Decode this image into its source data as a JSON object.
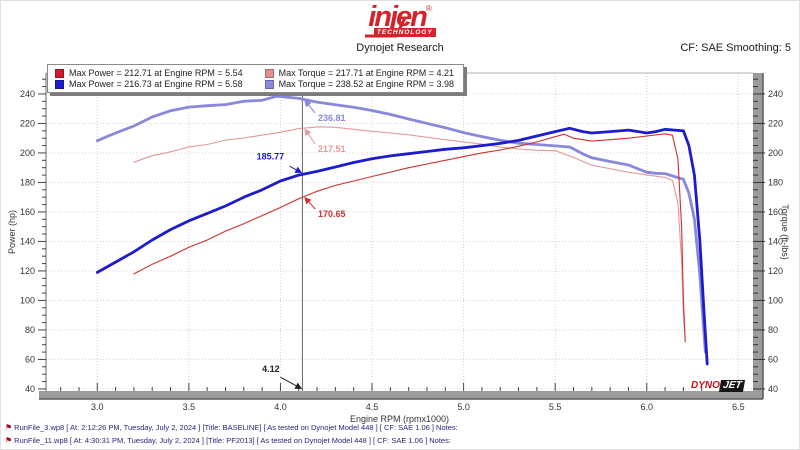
{
  "header": {
    "brand": {
      "name": "injen",
      "reg": "®",
      "sub": "TECHNOLOGY",
      "color": "#d6232a"
    },
    "title": "Dynojet Research",
    "cf_label": "CF: SAE Smoothing: 5"
  },
  "legend": {
    "items": [
      {
        "swatch": "#d01a2a",
        "label": "Max Power = 212.71 at Engine RPM = 5.54"
      },
      {
        "swatch": "#e38f8f",
        "label": "Max Torque = 217.71 at Engine RPM = 4.21"
      },
      {
        "swatch": "#1c1ccd",
        "label": "Max Power = 216.73 at Engine RPM = 5.58"
      },
      {
        "swatch": "#8a8ade",
        "label": "Max Torque = 238.52 at Engine RPM = 3.98"
      }
    ]
  },
  "chart_data": {
    "type": "line",
    "x_axis": {
      "label": "Engine RPM (rpmx1000)",
      "min": 2.72,
      "max": 6.58,
      "tick_values": [
        3.0,
        3.5,
        4.0,
        4.5,
        5.0,
        5.5,
        6.0,
        6.5
      ],
      "tick_labels": [
        "3.0",
        "3.5",
        "4.0",
        "4.5",
        "5.0",
        "5.5",
        "6.0",
        "6.5"
      ],
      "minor_step": 0.1
    },
    "y_axis_left": {
      "label": "Power (hp)",
      "min": 38.6,
      "max": 254.2,
      "tick_values": [
        40,
        60,
        80,
        100,
        120,
        140,
        160,
        180,
        200,
        220,
        240
      ],
      "minor_step": 5
    },
    "y_axis_right": {
      "label": "Torque (ft-lbs)",
      "min": 38.6,
      "max": 254.2,
      "tick_values": [
        40,
        60,
        80,
        100,
        120,
        140,
        160,
        180,
        200,
        220,
        240
      ],
      "minor_step": 5
    },
    "cursor": {
      "rpm": 4.12
    },
    "series": [
      {
        "name": "torque-baseline",
        "run": "BASELINE",
        "color": "#e39a9a",
        "width": 1.1,
        "points": [
          [
            3.2,
            193.7
          ],
          [
            3.3,
            198.1
          ],
          [
            3.4,
            200.8
          ],
          [
            3.5,
            204.1
          ],
          [
            3.6,
            205.7
          ],
          [
            3.7,
            208.7
          ],
          [
            3.8,
            210.1
          ],
          [
            3.9,
            212.1
          ],
          [
            4.0,
            214.0
          ],
          [
            4.1,
            216.5
          ],
          [
            4.21,
            217.7
          ],
          [
            4.3,
            217.4
          ],
          [
            4.4,
            216.0
          ],
          [
            4.5,
            214.7
          ],
          [
            4.6,
            213.5
          ],
          [
            4.7,
            212.3
          ],
          [
            4.8,
            210.6
          ],
          [
            4.9,
            209.0
          ],
          [
            5.0,
            207.5
          ],
          [
            5.1,
            206.0
          ],
          [
            5.2,
            204.0
          ],
          [
            5.3,
            202.7
          ],
          [
            5.4,
            201.8
          ],
          [
            5.5,
            201.5
          ],
          [
            5.6,
            197.0
          ],
          [
            5.7,
            191.7
          ],
          [
            5.8,
            189.3
          ],
          [
            5.9,
            186.9
          ],
          [
            6.0,
            185.1
          ],
          [
            6.1,
            183.4
          ],
          [
            6.14,
            181.3
          ],
          [
            6.17,
            166
          ],
          [
            6.19,
            127
          ],
          [
            6.2,
            90
          ],
          [
            6.21,
            75
          ]
        ]
      },
      {
        "name": "torque-pf2013",
        "run": "PF2013",
        "color": "#8888dd",
        "width": 2.8,
        "points": [
          [
            3.0,
            208.3
          ],
          [
            3.1,
            213.5
          ],
          [
            3.2,
            218.3
          ],
          [
            3.3,
            224.4
          ],
          [
            3.4,
            228.6
          ],
          [
            3.5,
            231.1
          ],
          [
            3.6,
            232.0
          ],
          [
            3.7,
            232.8
          ],
          [
            3.8,
            235.0
          ],
          [
            3.9,
            235.7
          ],
          [
            3.98,
            238.5
          ],
          [
            4.1,
            237.0
          ],
          [
            4.2,
            234.5
          ],
          [
            4.3,
            232.7
          ],
          [
            4.4,
            231.0
          ],
          [
            4.5,
            228.8
          ],
          [
            4.6,
            226.1
          ],
          [
            4.7,
            223.0
          ],
          [
            4.8,
            220.0
          ],
          [
            4.9,
            217.1
          ],
          [
            5.0,
            213.8
          ],
          [
            5.1,
            211.1
          ],
          [
            5.2,
            208.6
          ],
          [
            5.3,
            206.6
          ],
          [
            5.4,
            205.7
          ],
          [
            5.5,
            204.8
          ],
          [
            5.58,
            204.0
          ],
          [
            5.65,
            199.4
          ],
          [
            5.7,
            196.7
          ],
          [
            5.8,
            194.2
          ],
          [
            5.9,
            191.8
          ],
          [
            6.0,
            186.9
          ],
          [
            6.05,
            186.2
          ],
          [
            6.1,
            186.0
          ],
          [
            6.15,
            184.0
          ],
          [
            6.2,
            182.1
          ],
          [
            6.23,
            172.8
          ],
          [
            6.26,
            155.2
          ],
          [
            6.29,
            116.9
          ],
          [
            6.31,
            81.6
          ],
          [
            6.32,
            65
          ]
        ]
      },
      {
        "name": "power-baseline",
        "run": "BASELINE",
        "color": "#cf2f2f",
        "width": 1.1,
        "points": [
          [
            3.2,
            118
          ],
          [
            3.3,
            124.5
          ],
          [
            3.4,
            130
          ],
          [
            3.5,
            136
          ],
          [
            3.6,
            141
          ],
          [
            3.7,
            147
          ],
          [
            3.8,
            152
          ],
          [
            3.9,
            157.5
          ],
          [
            4.0,
            163
          ],
          [
            4.1,
            169
          ],
          [
            4.2,
            174
          ],
          [
            4.3,
            178
          ],
          [
            4.4,
            181
          ],
          [
            4.5,
            184
          ],
          [
            4.6,
            187
          ],
          [
            4.7,
            190
          ],
          [
            4.8,
            192.5
          ],
          [
            4.9,
            195
          ],
          [
            5.0,
            197.5
          ],
          [
            5.1,
            200
          ],
          [
            5.2,
            202
          ],
          [
            5.3,
            204.5
          ],
          [
            5.4,
            207.5
          ],
          [
            5.5,
            211
          ],
          [
            5.55,
            212.7
          ],
          [
            5.6,
            210
          ],
          [
            5.7,
            208
          ],
          [
            5.8,
            209
          ],
          [
            5.9,
            210
          ],
          [
            6.0,
            211.5
          ],
          [
            6.1,
            213
          ],
          [
            6.14,
            212
          ],
          [
            6.17,
            196
          ],
          [
            6.19,
            150
          ],
          [
            6.2,
            100
          ],
          [
            6.21,
            72
          ]
        ]
      },
      {
        "name": "power-pf2013",
        "run": "PF2013",
        "color": "#1c1ccd",
        "width": 2.8,
        "points": [
          [
            3.0,
            119
          ],
          [
            3.1,
            126
          ],
          [
            3.2,
            133
          ],
          [
            3.3,
            141
          ],
          [
            3.4,
            148
          ],
          [
            3.5,
            154
          ],
          [
            3.6,
            159
          ],
          [
            3.7,
            164
          ],
          [
            3.8,
            170
          ],
          [
            3.9,
            175
          ],
          [
            4.0,
            181
          ],
          [
            4.1,
            185
          ],
          [
            4.2,
            187.5
          ],
          [
            4.3,
            190.5
          ],
          [
            4.4,
            193.5
          ],
          [
            4.5,
            196
          ],
          [
            4.6,
            198
          ],
          [
            4.7,
            199.5
          ],
          [
            4.8,
            201
          ],
          [
            4.9,
            202.5
          ],
          [
            5.0,
            203.5
          ],
          [
            5.1,
            205
          ],
          [
            5.2,
            206.5
          ],
          [
            5.3,
            208.5
          ],
          [
            5.4,
            211.5
          ],
          [
            5.5,
            214.5
          ],
          [
            5.58,
            216.7
          ],
          [
            5.65,
            214.5
          ],
          [
            5.7,
            213.5
          ],
          [
            5.8,
            214.5
          ],
          [
            5.9,
            215.5
          ],
          [
            6.0,
            213.5
          ],
          [
            6.05,
            214.5
          ],
          [
            6.1,
            216
          ],
          [
            6.15,
            215.5
          ],
          [
            6.2,
            215
          ],
          [
            6.23,
            205
          ],
          [
            6.26,
            185
          ],
          [
            6.29,
            140
          ],
          [
            6.31,
            98
          ],
          [
            6.33,
            57
          ]
        ]
      }
    ],
    "annotations": [
      {
        "text": "236.81",
        "color": "#8888dd",
        "label": [
          4.205,
          221.5
        ],
        "arrow": [
          [
            4.19,
            227.0
          ],
          [
            4.135,
            235.3
          ]
        ]
      },
      {
        "text": "217.51",
        "color": "#e39a9a",
        "label": [
          4.205,
          200.5
        ],
        "arrow": [
          [
            4.19,
            206.0
          ],
          [
            4.135,
            215.8
          ]
        ]
      },
      {
        "text": "185.77",
        "color": "#1c1ccd",
        "label": [
          3.87,
          195.5
        ],
        "arrow": [
          [
            4.05,
            191.0
          ],
          [
            4.112,
            186.8
          ]
        ]
      },
      {
        "text": "170.65",
        "color": "#cf2f2f",
        "label": [
          4.205,
          156.5
        ],
        "arrow": [
          [
            4.19,
            162.0
          ],
          [
            4.135,
            169.5
          ]
        ]
      },
      {
        "text": "4.12",
        "color": "#222222",
        "label": [
          3.9,
          51.5
        ],
        "arrow": [
          [
            4.0,
            48.0
          ],
          [
            4.112,
            40.4
          ]
        ]
      }
    ],
    "max_markers": {
      "power_baseline": {
        "value": 212.71,
        "rpm": 5.54
      },
      "power_pf2013": {
        "value": 216.73,
        "rpm": 5.58
      },
      "torque_baseline": {
        "value": 217.71,
        "rpm": 4.21
      },
      "torque_pf2013": {
        "value": 238.52,
        "rpm": 3.98
      }
    }
  },
  "dynojet_logo": {
    "part1": "DYNO",
    "part2": "JET"
  },
  "footer": {
    "rows": [
      {
        "text": "RunFile_3.wp8 [ At: 2:12:26 PM, Tuesday, July 2, 2024 ] [Title: BASELINE]  [ As tested on Dynojet Model 448 ] [ CF: SAE 1.06 ] Notes:"
      },
      {
        "text": "RunFile_11.wp8 [ At: 4:30:31 PM, Tuesday, July 2, 2024 ] [Title: PF2013]  [ As tested on Dynojet Model 448 ] [ CF: SAE 1.06 ] Notes:"
      }
    ]
  }
}
